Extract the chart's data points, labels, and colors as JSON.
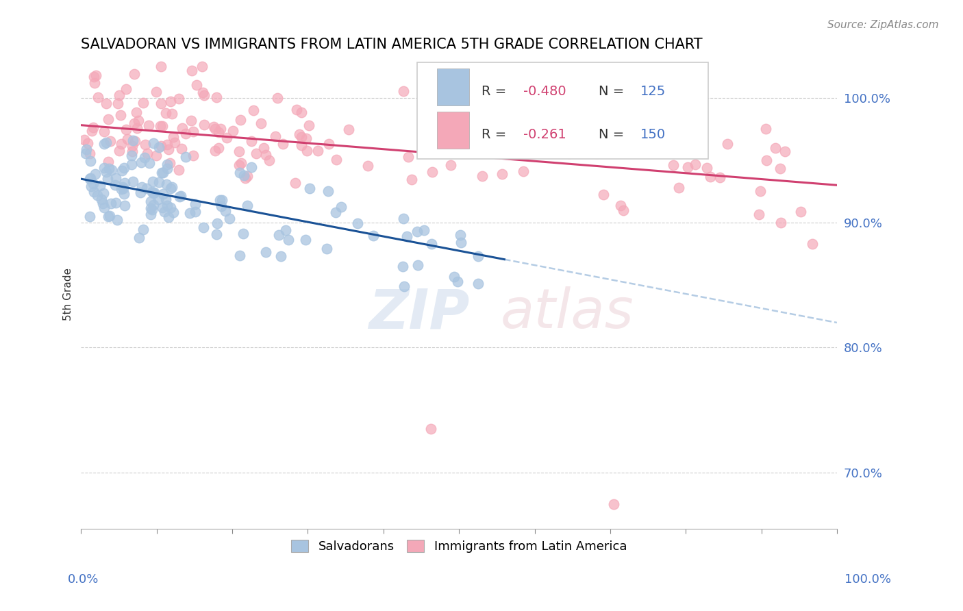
{
  "title": "SALVADORAN VS IMMIGRANTS FROM LATIN AMERICA 5TH GRADE CORRELATION CHART",
  "source": "Source: ZipAtlas.com",
  "ylabel": "5th Grade",
  "xlim": [
    0.0,
    1.0
  ],
  "ylim": [
    0.655,
    1.03
  ],
  "yticks": [
    0.7,
    0.8,
    0.9,
    1.0
  ],
  "ytick_labels": [
    "70.0%",
    "80.0%",
    "90.0%",
    "100.0%"
  ],
  "blue_R": -0.48,
  "blue_N": 125,
  "pink_R": -0.261,
  "pink_N": 150,
  "blue_color": "#a8c4e0",
  "pink_color": "#f4a8b8",
  "blue_line_color": "#1a5296",
  "pink_line_color": "#d04070",
  "blue_scatter_edge": "#8aaccc",
  "pink_scatter_edge": "#e890a8",
  "seed": 42,
  "background_color": "#ffffff",
  "grid_color": "#cccccc",
  "blue_intercept": 0.935,
  "blue_slope": -0.115,
  "pink_intercept": 0.978,
  "pink_slope": -0.048
}
